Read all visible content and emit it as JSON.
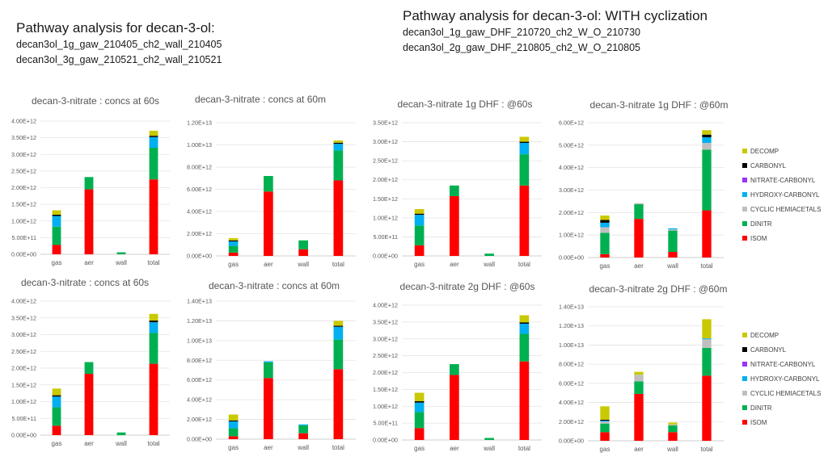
{
  "headers": {
    "left": {
      "title": "Pathway analysis for decan-3-ol:",
      "lines": [
        "decan3ol_1g_gaw_210405_ch2_wall_210405",
        "decan3ol_3g_gaw_210521_ch2_wall_210521"
      ]
    },
    "right": {
      "title": "Pathway analysis for decan-3-ol: WITH cyclization",
      "lines": [
        "decan3ol_1g_gaw_DHF_210720_ch2_W_O_210730",
        "decan3ol_2g_gaw_DHF_210805_ch2_W_O_210805"
      ]
    }
  },
  "colors": {
    "ISOM": "#ff0000",
    "DINITR": "#00b050",
    "CYCLIC HEMIACETALS": "#bfbfbf",
    "HYDROXY-CARBONYL": "#00b0f0",
    "NITRATE-CARBONYL": "#9933ff",
    "CARBONYL": "#000000",
    "DECOMP": "#c9c900"
  },
  "legend_top": [
    "DECOMP",
    "CARBONYL",
    "NITRATE-CARBONYL",
    "HYDROXY-CARBONYL",
    "CYCLIC HEMIACETALS",
    "DINITR",
    "ISOM"
  ],
  "legend_bottom": [
    "DECOMP",
    "CARBONYL",
    "NITRATE-CARBONYL",
    "HYDROXY-CARBONYL",
    "CYCLIC HEMIACETALS",
    "DINITR",
    "ISOM"
  ],
  "chart_data": [
    {
      "type": "bar",
      "stacked": true,
      "title": "decan-3-nitrate : concs at 60s",
      "categories": [
        "gas",
        "aer",
        "wall",
        "total"
      ],
      "ylim": [
        0,
        4000000000000.0
      ],
      "yticks": [
        "0.00E+00",
        "5.00E+11",
        "1.00E+12",
        "1.50E+12",
        "2.00E+12",
        "2.50E+12",
        "3.00E+12",
        "3.50E+12",
        "4.00E+12"
      ],
      "series": [
        {
          "name": "ISOM",
          "values": [
            280000000000.0,
            1950000000000.0,
            0,
            2250000000000.0
          ]
        },
        {
          "name": "DINITR",
          "values": [
            550000000000.0,
            370000000000.0,
            60000000000.0,
            950000000000.0
          ]
        },
        {
          "name": "CYCLIC HEMIACETALS",
          "values": [
            0,
            0,
            0,
            0
          ]
        },
        {
          "name": "HYDROXY-CARBONYL",
          "values": [
            320000000000.0,
            0,
            0,
            320000000000.0
          ]
        },
        {
          "name": "NITRATE-CARBONYL",
          "values": [
            0,
            0,
            0,
            0
          ]
        },
        {
          "name": "CARBONYL",
          "values": [
            40000000000.0,
            0,
            0,
            40000000000.0
          ]
        },
        {
          "name": "DECOMP",
          "values": [
            130000000000.0,
            0,
            0,
            150000000000.0
          ]
        }
      ]
    },
    {
      "type": "bar",
      "stacked": true,
      "title": "decan-3-nitrate : concs at 60m",
      "categories": [
        "gas",
        "aer",
        "wall",
        "total"
      ],
      "ylim": [
        0,
        12000000000000.0
      ],
      "yticks": [
        "0.00E+00",
        "2.00E+12",
        "4.00E+12",
        "6.00E+12",
        "8.00E+12",
        "1.00E+13",
        "1.20E+13"
      ],
      "series": [
        {
          "name": "ISOM",
          "values": [
            300000000000.0,
            5800000000000.0,
            600000000000.0,
            6800000000000.0
          ]
        },
        {
          "name": "DINITR",
          "values": [
            600000000000.0,
            1400000000000.0,
            800000000000.0,
            2700000000000.0
          ]
        },
        {
          "name": "CYCLIC HEMIACETALS",
          "values": [
            0,
            0,
            0,
            0
          ]
        },
        {
          "name": "HYDROXY-CARBONYL",
          "values": [
            400000000000.0,
            0,
            0,
            600000000000.0
          ]
        },
        {
          "name": "NITRATE-CARBONYL",
          "values": [
            0,
            0,
            0,
            0
          ]
        },
        {
          "name": "CARBONYL",
          "values": [
            100000000000.0,
            0,
            0,
            100000000000.0
          ]
        },
        {
          "name": "DECOMP",
          "values": [
            200000000000.0,
            0,
            0,
            200000000000.0
          ]
        }
      ]
    },
    {
      "type": "bar",
      "stacked": true,
      "title": "decan-3-nitrate 1g DHF : @60s",
      "categories": [
        "gas",
        "aer",
        "wall",
        "total"
      ],
      "ylim": [
        0,
        3500000000000.0
      ],
      "yticks": [
        "0.00E+00",
        "5.00E+11",
        "1.00E+12",
        "1.50E+12",
        "2.00E+12",
        "2.50E+12",
        "3.00E+12",
        "3.50E+12"
      ],
      "series": [
        {
          "name": "ISOM",
          "values": [
            280000000000.0,
            1570000000000.0,
            0,
            1850000000000.0
          ]
        },
        {
          "name": "DINITR",
          "values": [
            520000000000.0,
            280000000000.0,
            60000000000.0,
            820000000000.0
          ]
        },
        {
          "name": "CYCLIC HEMIACETALS",
          "values": [
            0,
            0,
            0,
            0
          ]
        },
        {
          "name": "HYDROXY-CARBONYL",
          "values": [
            280000000000.0,
            0,
            0,
            300000000000.0
          ]
        },
        {
          "name": "NITRATE-CARBONYL",
          "values": [
            0,
            0,
            0,
            0
          ]
        },
        {
          "name": "CARBONYL",
          "values": [
            30000000000.0,
            0,
            0,
            30000000000.0
          ]
        },
        {
          "name": "DECOMP",
          "values": [
            120000000000.0,
            0,
            0,
            130000000000.0
          ]
        }
      ]
    },
    {
      "type": "bar",
      "stacked": true,
      "title": "decan-3-nitrate 1g DHF : @60m",
      "categories": [
        "gas",
        "aer",
        "wall",
        "total"
      ],
      "ylim": [
        0,
        6000000000000.0
      ],
      "yticks": [
        "0.00E+00",
        "1.00E+12",
        "2.00E+12",
        "3.00E+12",
        "4.00E+12",
        "5.00E+12",
        "6.00E+12"
      ],
      "series": [
        {
          "name": "ISOM",
          "values": [
            150000000000.0,
            1720000000000.0,
            250000000000.0,
            2100000000000.0
          ]
        },
        {
          "name": "DINITR",
          "values": [
            950000000000.0,
            650000000000.0,
            950000000000.0,
            2700000000000.0
          ]
        },
        {
          "name": "CYCLIC HEMIACETALS",
          "values": [
            250000000000.0,
            50000000000.0,
            50000000000.0,
            300000000000.0
          ]
        },
        {
          "name": "HYDROXY-CARBONYL",
          "values": [
            200000000000.0,
            0,
            50000000000.0,
            250000000000.0
          ]
        },
        {
          "name": "NITRATE-CARBONYL",
          "values": [
            0,
            0,
            0,
            0
          ]
        },
        {
          "name": "CARBONYL",
          "values": [
            120000000000.0,
            0,
            0,
            120000000000.0
          ]
        },
        {
          "name": "DECOMP",
          "values": [
            200000000000.0,
            0,
            0,
            200000000000.0
          ]
        }
      ]
    },
    {
      "type": "bar",
      "stacked": true,
      "title": "decan-3-nitrate : concs at 60s",
      "categories": [
        "gas",
        "aer",
        "wall",
        "total"
      ],
      "ylim": [
        0,
        4000000000000.0
      ],
      "yticks": [
        "0.00E+00",
        "5.00E+11",
        "1.00E+12",
        "1.50E+12",
        "2.00E+12",
        "2.50E+12",
        "3.00E+12",
        "3.50E+12",
        "4.00E+12"
      ],
      "series": [
        {
          "name": "ISOM",
          "values": [
            280000000000.0,
            1830000000000.0,
            0,
            2130000000000.0
          ]
        },
        {
          "name": "DINITR",
          "values": [
            550000000000.0,
            350000000000.0,
            80000000000.0,
            920000000000.0
          ]
        },
        {
          "name": "CYCLIC HEMIACETALS",
          "values": [
            0,
            0,
            0,
            0
          ]
        },
        {
          "name": "HYDROXY-CARBONYL",
          "values": [
            320000000000.0,
            0,
            0,
            320000000000.0
          ]
        },
        {
          "name": "NITRATE-CARBONYL",
          "values": [
            0,
            0,
            0,
            0
          ]
        },
        {
          "name": "CARBONYL",
          "values": [
            40000000000.0,
            0,
            0,
            50000000000.0
          ]
        },
        {
          "name": "DECOMP",
          "values": [
            200000000000.0,
            0,
            0,
            200000000000.0
          ]
        }
      ]
    },
    {
      "type": "bar",
      "stacked": true,
      "title": "decan-3-nitrate : concs at 60m",
      "categories": [
        "gas",
        "aer",
        "wall",
        "total"
      ],
      "ylim": [
        0,
        14000000000000.0
      ],
      "yticks": [
        "0.00E+00",
        "2.00E+12",
        "4.00E+12",
        "6.00E+12",
        "8.00E+12",
        "1.00E+13",
        "1.20E+13",
        "1.40E+13"
      ],
      "series": [
        {
          "name": "ISOM",
          "values": [
            300000000000.0,
            6200000000000.0,
            600000000000.0,
            7100000000000.0
          ]
        },
        {
          "name": "DINITR",
          "values": [
            800000000000.0,
            1600000000000.0,
            800000000000.0,
            3000000000000.0
          ]
        },
        {
          "name": "CYCLIC HEMIACETALS",
          "values": [
            0,
            0,
            0,
            0
          ]
        },
        {
          "name": "HYDROXY-CARBONYL",
          "values": [
            700000000000.0,
            100000000000.0,
            100000000000.0,
            1300000000000.0
          ]
        },
        {
          "name": "NITRATE-CARBONYL",
          "values": [
            0,
            0,
            0,
            0
          ]
        },
        {
          "name": "CARBONYL",
          "values": [
            100000000000.0,
            0,
            0,
            100000000000.0
          ]
        },
        {
          "name": "DECOMP",
          "values": [
            600000000000.0,
            0,
            0,
            500000000000.0
          ]
        }
      ]
    },
    {
      "type": "bar",
      "stacked": true,
      "title": "decan-3-nitrate 2g DHF : @60s",
      "categories": [
        "gas",
        "aer",
        "wall",
        "total"
      ],
      "ylim": [
        0,
        4000000000000.0
      ],
      "yticks": [
        "0.00E+00",
        "5.00E+11",
        "1.00E+12",
        "1.50E+12",
        "2.00E+12",
        "2.50E+12",
        "3.00E+12",
        "3.50E+12",
        "4.00E+12"
      ],
      "series": [
        {
          "name": "ISOM",
          "values": [
            350000000000.0,
            1930000000000.0,
            0,
            2330000000000.0
          ]
        },
        {
          "name": "DINITR",
          "values": [
            480000000000.0,
            320000000000.0,
            60000000000.0,
            820000000000.0
          ]
        },
        {
          "name": "CYCLIC HEMIACETALS",
          "values": [
            0,
            0,
            0,
            0
          ]
        },
        {
          "name": "HYDROXY-CARBONYL",
          "values": [
            280000000000.0,
            0,
            0,
            300000000000.0
          ]
        },
        {
          "name": "NITRATE-CARBONYL",
          "values": [
            0,
            0,
            0,
            0
          ]
        },
        {
          "name": "CARBONYL",
          "values": [
            40000000000.0,
            0,
            0,
            40000000000.0
          ]
        },
        {
          "name": "DECOMP",
          "values": [
            250000000000.0,
            0,
            0,
            210000000000.0
          ]
        }
      ]
    },
    {
      "type": "bar",
      "stacked": true,
      "title": "decan-3-nitrate 2g DHF : @60m",
      "categories": [
        "gas",
        "aer",
        "wall",
        "total"
      ],
      "ylim": [
        0,
        14000000000000.0
      ],
      "yticks": [
        "0.00E+00",
        "2.00E+12",
        "4.00E+12",
        "6.00E+12",
        "8.00E+12",
        "1.00E+13",
        "1.20E+13",
        "1.40E+13"
      ],
      "series": [
        {
          "name": "ISOM",
          "values": [
            900000000000.0,
            4900000000000.0,
            900000000000.0,
            6800000000000.0
          ]
        },
        {
          "name": "DINITR",
          "values": [
            900000000000.0,
            1300000000000.0,
            700000000000.0,
            2900000000000.0
          ]
        },
        {
          "name": "CYCLIC HEMIACETALS",
          "values": [
            200000000000.0,
            700000000000.0,
            100000000000.0,
            900000000000.0
          ]
        },
        {
          "name": "HYDROXY-CARBONYL",
          "values": [
            100000000000.0,
            0,
            0,
            100000000000.0
          ]
        },
        {
          "name": "NITRATE-CARBONYL",
          "values": [
            0,
            0,
            0,
            0
          ]
        },
        {
          "name": "CARBONYL",
          "values": [
            100000000000.0,
            0,
            0,
            0
          ]
        },
        {
          "name": "DECOMP",
          "values": [
            1400000000000.0,
            300000000000.0,
            200000000000.0,
            2000000000000.0
          ]
        }
      ]
    }
  ]
}
